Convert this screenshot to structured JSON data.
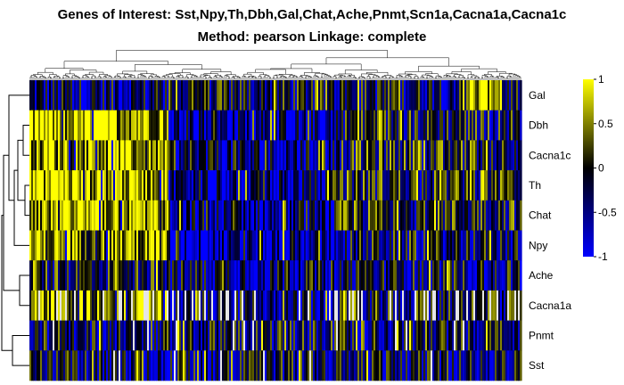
{
  "title": "Genes of Interest: Sst,Npy,Th,Dbh,Gal,Chat,Ache,Pnmt,Scn1a,Cacna1a,Cacna1c",
  "subtitle": "Method: pearson  Linkage: complete",
  "chart_data": {
    "type": "heatmap",
    "title": "Genes of Interest: Sst,Npy,Th,Dbh,Gal,Chat,Ache,Pnmt,Scn1a,Cacna1a,Cacna1c",
    "subtitle": "Method: pearson  Linkage: complete",
    "rows": [
      "Gal",
      "Dbh",
      "Cacna1c",
      "Th",
      "Chat",
      "Npy",
      "Ache",
      "Cacna1a",
      "Pnmt",
      "Sst"
    ],
    "colorbar": {
      "low_color": "#0000ff",
      "mid_color": "#000000",
      "high_color": "#ffff00",
      "na_color": "#e6e6e6",
      "range": [
        -1,
        1
      ],
      "ticks": [
        1,
        0.5,
        0,
        -0.5,
        -1
      ],
      "tick_labels": [
        "1",
        "0.5",
        "0",
        "-0.5",
        "-1"
      ]
    },
    "row_dendrogram": true,
    "column_dendrogram": true
  }
}
